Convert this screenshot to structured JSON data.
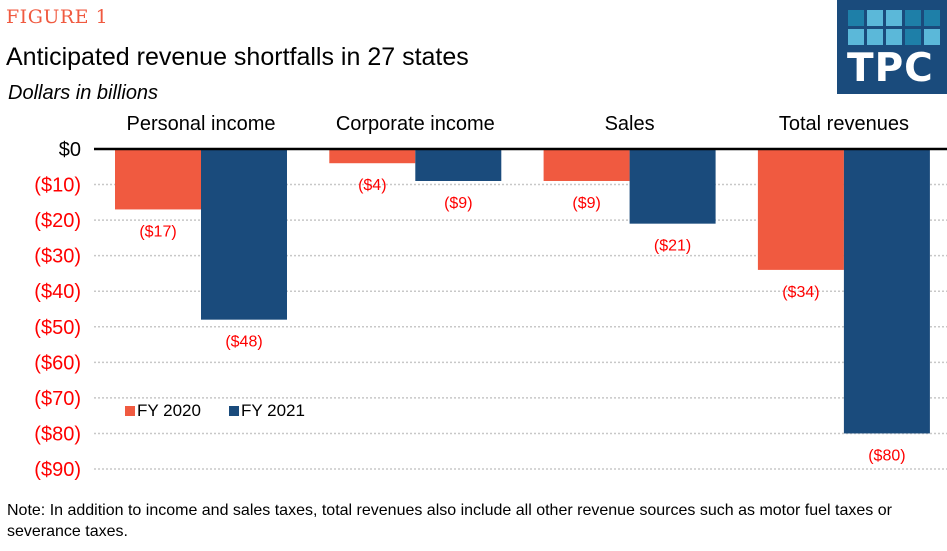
{
  "figure_label": "FIGURE 1",
  "logo": {
    "text": "TPC",
    "tile_colors": [
      "#1e7fa8",
      "#5bb8d9",
      "#5bb8d9",
      "#1e7fa8",
      "#1e7fa8",
      "#5bb8d9",
      "#5bb8d9",
      "#5bb8d9",
      "#1e7fa8",
      "#5bb8d9"
    ],
    "background": "#1a4b7c"
  },
  "note": "Note: In addition to income and sales taxes, total revenues also include all other revenue sources such as motor fuel taxes or severance taxes.",
  "colors": {
    "fy2020": "#f05a40",
    "fy2021": "#1a4b7c",
    "negative_label": "#ff0000",
    "zero_label": "#000000",
    "gridline": "#c8c8c8",
    "axis_line": "#000000"
  },
  "chart_data": {
    "type": "bar",
    "title": "Anticipated revenue shortfalls in 27 states",
    "subtitle": "Dollars in billions",
    "xlabel": "",
    "ylabel": "",
    "categories": [
      "Personal income",
      "Corporate income",
      "Sales",
      "Total revenues"
    ],
    "category_label_position": "top",
    "series": [
      {
        "name": "FY 2020",
        "values": [
          -17,
          -4,
          -9,
          -34
        ],
        "labels": [
          "($17)",
          "($4)",
          "($9)",
          "($34)"
        ]
      },
      {
        "name": "FY 2021",
        "values": [
          -48,
          -9,
          -21,
          -80
        ],
        "labels": [
          "($48)",
          "($9)",
          "($21)",
          "($80)"
        ]
      }
    ],
    "ylim": [
      -90,
      0
    ],
    "yticks": [
      0,
      -10,
      -20,
      -30,
      -40,
      -50,
      -60,
      -70,
      -80,
      -90
    ],
    "ytick_labels": [
      "$0",
      "($10)",
      "($20)",
      "($30)",
      "($40)",
      "($50)",
      "($60)",
      "($70)",
      "($80)",
      "($90)"
    ],
    "grid": true,
    "grid_style": "dotted",
    "legend": {
      "position": "bottom-left",
      "entries": [
        "FY 2020",
        "FY 2021"
      ]
    }
  }
}
